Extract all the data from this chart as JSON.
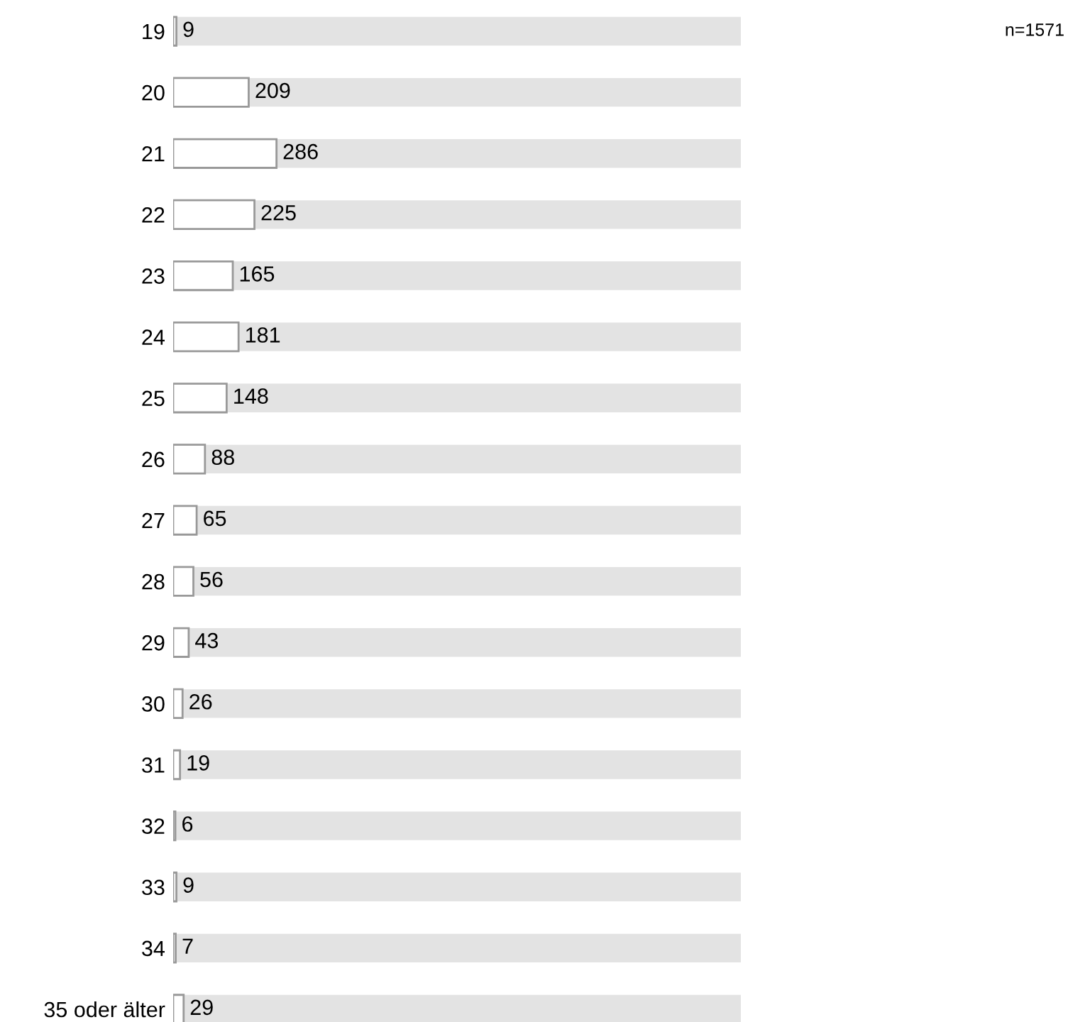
{
  "chart_data": {
    "type": "bar",
    "orientation": "horizontal",
    "categories": [
      "19",
      "20",
      "21",
      "22",
      "23",
      "24",
      "25",
      "26",
      "27",
      "28",
      "29",
      "30",
      "31",
      "32",
      "33",
      "34",
      "35 oder älter"
    ],
    "series": [
      {
        "color": "#ffffff",
        "values": [
          9,
          209,
          286,
          225,
          165,
          181,
          148,
          88,
          65,
          56,
          43,
          26,
          19,
          6,
          9,
          7,
          29
        ],
        "value_labels": [
          "9",
          "209",
          "286",
          "225",
          "165",
          "181",
          "148",
          "88",
          "65",
          "56",
          "43",
          "26",
          "19",
          "6",
          "9",
          "7",
          "29"
        ]
      }
    ],
    "xlim": [
      0,
      1571
    ],
    "tick_labels": "y",
    "annotations": [
      "n=1571"
    ]
  }
}
